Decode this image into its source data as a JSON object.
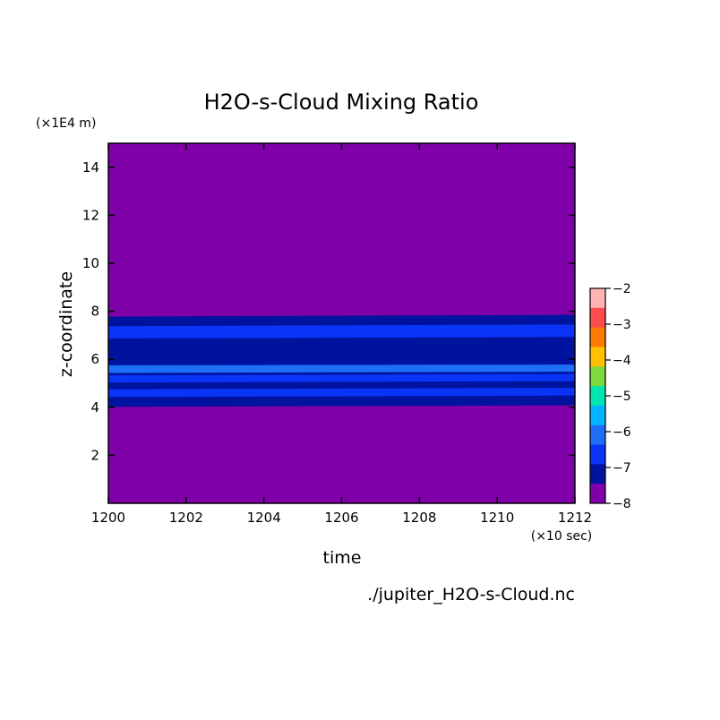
{
  "chart_data": {
    "type": "heatmap",
    "title": "H2O-s-Cloud Mixing Ratio",
    "xlabel": "time",
    "x_unit": "(×10 sec)",
    "ylabel": "z-coordinate",
    "y_unit": "(×1E4 m)",
    "xlim": [
      1200,
      1212
    ],
    "ylim": [
      0,
      15
    ],
    "x_ticks": [
      1200,
      1202,
      1204,
      1206,
      1208,
      1210,
      1212
    ],
    "y_ticks": [
      2,
      4,
      6,
      8,
      10,
      12,
      14
    ],
    "background_level_color": "#7f00a8",
    "bands": [
      {
        "level": -7.5,
        "color": "#00139f",
        "y0": [
          4.02,
          4.08
        ],
        "y1": [
          7.78,
          7.85
        ]
      },
      {
        "level": -7.0,
        "color": "#0a35f7",
        "y0": [
          4.43,
          4.49
        ],
        "y1": [
          4.75,
          4.81
        ]
      },
      {
        "level": -7.0,
        "color": "#0a35f7",
        "y0": [
          5.03,
          5.09
        ],
        "y1": [
          5.33,
          5.39
        ]
      },
      {
        "level": -6.5,
        "color": "#1e6ff7",
        "y0": [
          5.43,
          5.48
        ],
        "y1": [
          5.75,
          5.78
        ]
      },
      {
        "level": -7.0,
        "color": "#0a35f7",
        "y0": [
          6.87,
          6.93
        ],
        "y1": [
          7.38,
          7.45
        ]
      }
    ],
    "colorbar": {
      "ticks": [
        -2,
        -3,
        -4,
        -5,
        -6,
        -7,
        -8
      ],
      "colors": [
        "#ffb3b3",
        "#ff4d4d",
        "#ff7a00",
        "#ffc000",
        "#7fd93a",
        "#00e5b0",
        "#00b4ff",
        "#1e6ff7",
        "#0a35f7",
        "#00139f",
        "#7f00a8"
      ]
    },
    "source_file": "./jupiter_H2O-s-Cloud.nc"
  }
}
